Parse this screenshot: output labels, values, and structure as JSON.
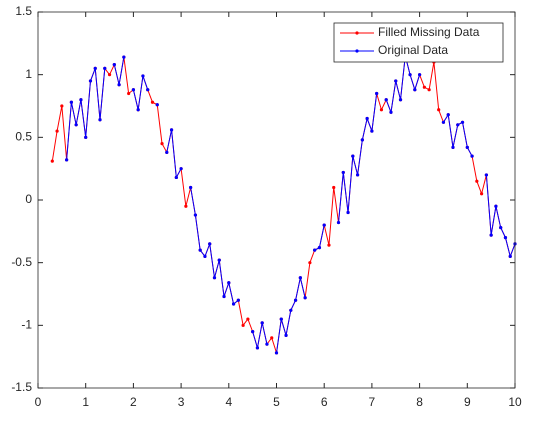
{
  "chart_data": {
    "type": "line",
    "x": [
      0.3,
      0.4,
      0.5,
      0.6,
      0.7,
      0.8,
      0.9,
      1.0,
      1.1,
      1.2,
      1.3,
      1.4,
      1.5,
      1.6,
      1.7,
      1.8,
      1.9,
      2.0,
      2.1,
      2.2,
      2.3,
      2.4,
      2.5,
      2.6,
      2.7,
      2.8,
      2.9,
      3.0,
      3.1,
      3.2,
      3.3,
      3.4,
      3.5,
      3.6,
      3.7,
      3.8,
      3.9,
      4.0,
      4.1,
      4.2,
      4.3,
      4.4,
      4.5,
      4.6,
      4.7,
      4.8,
      4.9,
      5.0,
      5.1,
      5.2,
      5.3,
      5.4,
      5.5,
      5.6,
      5.7,
      5.8,
      5.9,
      6.0,
      6.1,
      6.2,
      6.3,
      6.4,
      6.5,
      6.6,
      6.7,
      6.8,
      6.9,
      7.0,
      7.1,
      7.2,
      7.3,
      7.4,
      7.5,
      7.6,
      7.7,
      7.8,
      7.9,
      8.0,
      8.1,
      8.2,
      8.3,
      8.4,
      8.5,
      8.6,
      8.7,
      8.8,
      8.9,
      9.0,
      9.1,
      9.2,
      9.3,
      9.4,
      9.5,
      9.6,
      9.7,
      9.8,
      9.9,
      10.0
    ],
    "series": [
      {
        "name": "Filled Missing Data",
        "color": "#ff0000",
        "values": [
          0.31,
          0.55,
          0.75,
          0.32,
          0.78,
          0.6,
          0.8,
          0.5,
          0.95,
          1.05,
          0.64,
          1.05,
          1.0,
          1.08,
          0.92,
          1.14,
          0.85,
          0.88,
          0.72,
          0.99,
          0.88,
          0.78,
          0.76,
          0.45,
          0.38,
          0.56,
          0.18,
          0.25,
          -0.05,
          0.1,
          -0.12,
          -0.4,
          -0.45,
          -0.35,
          -0.62,
          -0.48,
          -0.77,
          -0.66,
          -0.83,
          -0.8,
          -1.0,
          -0.95,
          -1.05,
          -1.18,
          -0.98,
          -1.15,
          -1.1,
          -1.22,
          -0.95,
          -1.08,
          -0.88,
          -0.8,
          -0.62,
          -0.78,
          -0.5,
          -0.4,
          -0.38,
          -0.2,
          -0.36,
          0.1,
          -0.18,
          0.22,
          -0.1,
          0.35,
          0.2,
          0.48,
          0.65,
          0.55,
          0.85,
          0.72,
          0.8,
          0.7,
          0.95,
          0.8,
          1.15,
          1.0,
          0.88,
          1.0,
          0.9,
          0.88,
          1.1,
          0.72,
          0.62,
          0.68,
          0.42,
          0.6,
          0.62,
          0.42,
          0.35,
          0.15,
          0.05,
          0.2,
          -0.28,
          -0.05,
          -0.22,
          -0.3,
          -0.45,
          -0.35
        ]
      },
      {
        "name": "Original Data",
        "color": "#0000ff",
        "values": [
          null,
          null,
          null,
          0.32,
          0.78,
          0.6,
          0.8,
          0.5,
          0.95,
          1.05,
          0.64,
          1.05,
          null,
          1.08,
          0.92,
          1.14,
          null,
          0.88,
          0.72,
          0.99,
          0.88,
          null,
          0.76,
          null,
          0.38,
          0.56,
          0.18,
          0.25,
          null,
          0.1,
          -0.12,
          -0.4,
          -0.45,
          -0.35,
          -0.62,
          -0.48,
          -0.77,
          -0.66,
          -0.83,
          -0.8,
          null,
          null,
          -1.05,
          -1.18,
          -0.98,
          -1.15,
          null,
          -1.22,
          -0.95,
          -1.08,
          -0.88,
          -0.8,
          -0.62,
          -0.78,
          null,
          -0.4,
          -0.38,
          -0.2,
          null,
          null,
          -0.18,
          0.22,
          -0.1,
          0.35,
          0.2,
          0.48,
          0.65,
          0.55,
          0.85,
          null,
          0.8,
          0.7,
          0.95,
          0.8,
          1.15,
          1.0,
          0.88,
          1.0,
          null,
          null,
          null,
          null,
          0.62,
          0.68,
          0.42,
          0.6,
          0.62,
          0.42,
          0.35,
          null,
          null,
          0.2,
          -0.28,
          -0.05,
          -0.22,
          -0.3,
          -0.45,
          -0.35
        ]
      }
    ],
    "xlim": [
      0,
      10
    ],
    "xticks": [
      0,
      1,
      2,
      3,
      4,
      5,
      6,
      7,
      8,
      9,
      10
    ],
    "ylim": [
      -1.5,
      1.5
    ],
    "yticks": [
      -1.5,
      -1,
      -0.5,
      0,
      0.5,
      1,
      1.5
    ],
    "grid": false,
    "legend": "northeast"
  }
}
